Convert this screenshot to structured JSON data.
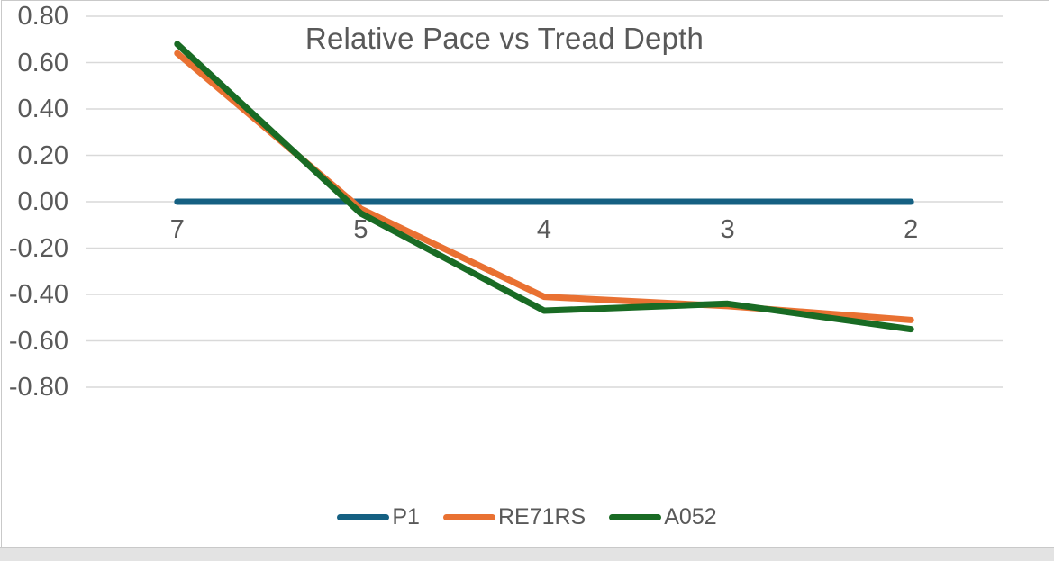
{
  "chart_data": {
    "type": "line",
    "title": "Relative Pace vs Tread Depth",
    "xlabel": "",
    "ylabel": "",
    "categories": [
      "7",
      "5",
      "4",
      "3",
      "2"
    ],
    "series": [
      {
        "name": "P1",
        "color": "#156082",
        "values": [
          0.0,
          0.0,
          0.0,
          0.0,
          0.0
        ]
      },
      {
        "name": "RE71RS",
        "color": "#E97132",
        "values": [
          0.64,
          -0.03,
          -0.41,
          -0.45,
          -0.51
        ]
      },
      {
        "name": "A052",
        "color": "#196B24",
        "values": [
          0.68,
          -0.05,
          -0.47,
          -0.44,
          -0.55
        ]
      }
    ],
    "y_axis": {
      "min": -0.8,
      "max": 0.8,
      "step": 0.2,
      "tick_labels": [
        "0.80",
        "0.60",
        "0.40",
        "0.20",
        "0.00",
        "-0.20",
        "-0.40",
        "-0.60",
        "-0.80"
      ]
    },
    "grid": true,
    "legend_position": "bottom",
    "colors": {
      "title_text": "#595959",
      "axis_text": "#595959",
      "gridline": "#D9D9D9",
      "frame_border": "#C9C9C9",
      "bottom_strip": "#E3E3E3",
      "background": "#FFFFFF"
    }
  }
}
